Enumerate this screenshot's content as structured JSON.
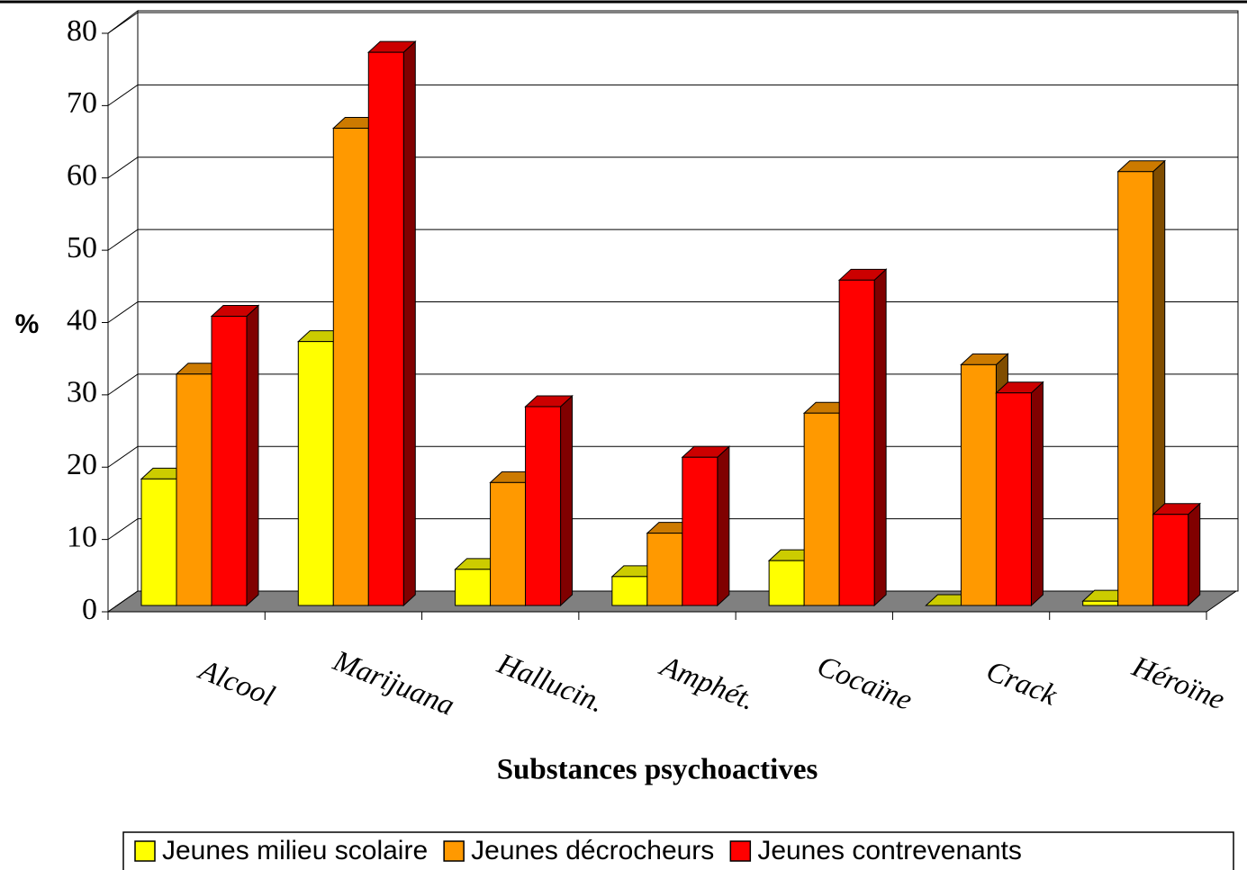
{
  "chart_data": {
    "type": "bar3d",
    "y_label": "%",
    "x_label": "Substances psychoactives",
    "categories": [
      "Alcool",
      "Marijuana",
      "Hallucin.",
      "Amphét.",
      "Cocaïne",
      "Crack",
      "Héroïne"
    ],
    "series": [
      {
        "name": "Jeunes milieu scolaire",
        "color": "#ffff00",
        "values": [
          17.5,
          36.5,
          5,
          4,
          6.2,
          0,
          0.6
        ]
      },
      {
        "name": "Jeunes décrocheurs",
        "color": "#ff9900",
        "values": [
          32,
          66,
          17,
          10,
          26.6,
          33.3,
          60
        ]
      },
      {
        "name": "Jeunes contrevenants",
        "color": "#ff0000",
        "values": [
          40,
          76.5,
          27.5,
          20.5,
          45,
          29.4,
          12.6
        ]
      }
    ],
    "ylim": [
      0,
      80
    ],
    "yticks": [
      0,
      10,
      20,
      30,
      40,
      50,
      60,
      70,
      80
    ],
    "grid": true,
    "legend": "bottom"
  }
}
